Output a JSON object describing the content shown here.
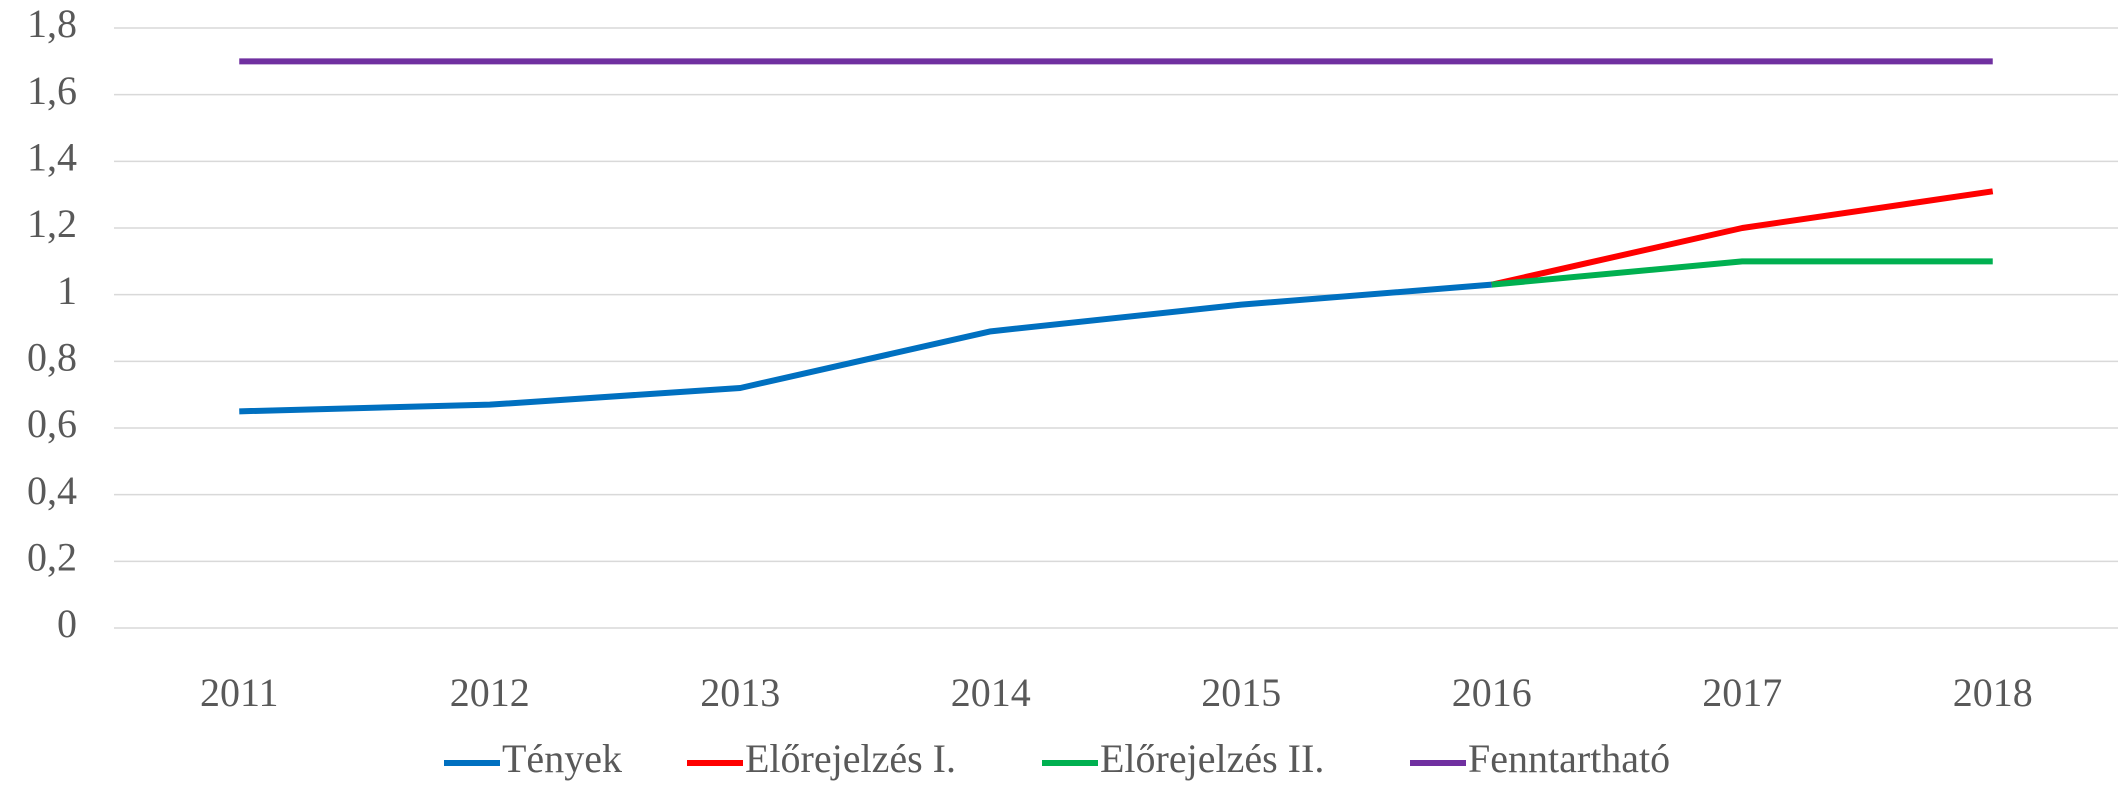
{
  "chart_data": {
    "type": "line",
    "categories": [
      "2011",
      "2012",
      "2013",
      "2014",
      "2015",
      "2016",
      "2017",
      "2018"
    ],
    "series": [
      {
        "name": "Tények",
        "color": "#0070c0",
        "values": [
          0.65,
          0.67,
          0.72,
          0.89,
          0.97,
          1.03,
          null,
          null
        ]
      },
      {
        "name": "Előrejelzés I.",
        "color": "#ff0000",
        "values": [
          null,
          null,
          null,
          null,
          null,
          1.03,
          1.2,
          1.31
        ]
      },
      {
        "name": "Előrejelzés II.",
        "color": "#00b050",
        "values": [
          null,
          null,
          null,
          null,
          null,
          1.03,
          1.1,
          1.1
        ]
      },
      {
        "name": "Fenntartható",
        "color": "#7030a0",
        "values": [
          1.7,
          1.7,
          1.7,
          1.7,
          1.7,
          1.7,
          1.7,
          1.7
        ]
      }
    ],
    "ylim": [
      0,
      1.8
    ],
    "yticks": [
      0,
      {
        "value": 0.2,
        "label": "0,2"
      },
      {
        "value": 0.4,
        "label": "0,4"
      },
      {
        "value": 0.6,
        "label": "0,6"
      },
      {
        "value": 0.8,
        "label": "0,8"
      },
      1,
      {
        "value": 1.2,
        "label": "1,2"
      },
      {
        "value": 1.4,
        "label": "1,4"
      },
      {
        "value": 1.6,
        "label": "1,6"
      },
      {
        "value": 1.8,
        "label": "1,8"
      }
    ],
    "grid": true,
    "legend": "bottom"
  }
}
